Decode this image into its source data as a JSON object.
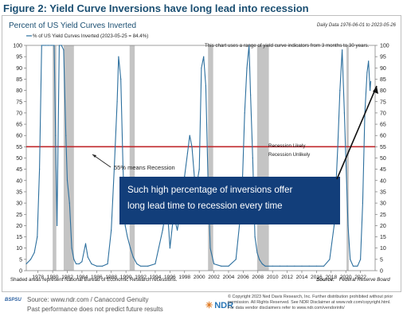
{
  "figure_title": "Figure 2: Yield Curve Inversions have long lead into recession",
  "chart_data": {
    "type": "line",
    "title": "Percent of US Yield Curves Inverted",
    "date_range_label": "Daily Data 1976-06-01 to 2023-05-26",
    "legend_label": "% of US Yield Curves Inverted (2023-05-25 = 84.4%)",
    "note_top": "This chart uses a range of yield curve indicators from 3 months to 30 years.",
    "xlim": [
      1976.4,
      2024.0
    ],
    "ylim": [
      0,
      100
    ],
    "y_ticks": [
      0,
      5,
      10,
      15,
      20,
      25,
      30,
      35,
      40,
      45,
      50,
      55,
      60,
      65,
      70,
      75,
      80,
      85,
      90,
      95,
      100
    ],
    "x_ticks": [
      "1978",
      "1980",
      "1982",
      "1984",
      "1986",
      "1988",
      "1990",
      "1992",
      "1994",
      "1996",
      "1998",
      "2000",
      "2002",
      "2004",
      "2006",
      "2008",
      "2010",
      "2012",
      "2014",
      "2016",
      "2018",
      "2020",
      "2022"
    ],
    "x_tick_values": [
      1978,
      1980,
      1982,
      1984,
      1986,
      1988,
      1990,
      1992,
      1994,
      1996,
      1998,
      2000,
      2002,
      2004,
      2006,
      2008,
      2010,
      2012,
      2014,
      2016,
      2018,
      2020,
      2022
    ],
    "recessions": [
      [
        1980.0,
        1980.5
      ],
      [
        1981.5,
        1982.9
      ],
      [
        1990.5,
        1991.2
      ],
      [
        2001.2,
        2001.9
      ],
      [
        2007.9,
        2009.5
      ],
      [
        2020.1,
        2020.4
      ]
    ],
    "threshold": 55,
    "threshold_label_above": "Recession Likely",
    "threshold_label_below": "Recession Unlikely",
    "threshold_note": "55% means Recession",
    "series": [
      {
        "x": [
          1976.4,
          1977.0,
          1977.5,
          1977.9,
          1978.2,
          1978.5,
          1978.7,
          1979.0,
          1979.4,
          1979.8,
          1980.2,
          1980.4,
          1980.6,
          1980.9,
          1981.2,
          1981.5,
          1981.8,
          1982.0,
          1982.3,
          1982.6,
          1982.9,
          1983.2,
          1983.6,
          1984.0,
          1984.5,
          1984.8,
          1985.3,
          1986.0,
          1986.8,
          1987.5,
          1988.0,
          1988.4,
          1988.8,
          1989.0,
          1989.3,
          1989.6,
          1989.9,
          1990.2,
          1990.6,
          1991.0,
          1991.5,
          1992.0,
          1993.0,
          1994.0,
          1995.0,
          1995.6,
          1996.0,
          1996.5,
          1997.0,
          1997.6,
          1998.0,
          1998.4,
          1998.7,
          1999.0,
          1999.5,
          2000.0,
          2000.3,
          2000.6,
          2000.9,
          2001.2,
          2001.5,
          2002.0,
          2003.0,
          2004.0,
          2005.0,
          2005.8,
          2006.2,
          2006.5,
          2006.8,
          2007.0,
          2007.3,
          2007.6,
          2007.9,
          2008.2,
          2008.6,
          2009.0,
          2010.0,
          2011.0,
          2012.0,
          2013.0,
          2014.0,
          2015.0,
          2016.0,
          2017.0,
          2017.8,
          2018.4,
          2018.9,
          2019.2,
          2019.5,
          2019.8,
          2020.0,
          2020.3,
          2020.6,
          2021.0,
          2021.6,
          2022.0,
          2022.3,
          2022.6,
          2022.9,
          2023.1,
          2023.3,
          2023.4
        ],
        "y": [
          3,
          5,
          8,
          15,
          45,
          100,
          100,
          100,
          100,
          100,
          100,
          60,
          20,
          100,
          100,
          98,
          60,
          40,
          30,
          10,
          5,
          3,
          3,
          4,
          12,
          6,
          3,
          2,
          2,
          3,
          18,
          45,
          75,
          95,
          85,
          45,
          20,
          15,
          10,
          6,
          3,
          2,
          2,
          3,
          18,
          30,
          10,
          25,
          18,
          30,
          42,
          52,
          60,
          55,
          35,
          45,
          90,
          95,
          82,
          40,
          10,
          3,
          2,
          2,
          5,
          30,
          70,
          90,
          100,
          78,
          50,
          15,
          8,
          5,
          3,
          2,
          2,
          2,
          2,
          2,
          2,
          2,
          2,
          2,
          5,
          20,
          55,
          80,
          98,
          70,
          50,
          20,
          5,
          2,
          2,
          5,
          30,
          70,
          88,
          93,
          80,
          84
        ]
      }
    ],
    "annotation_box": "Such high percentage of inversions offer long lead time to recession every time",
    "shaded_note": "Shaded areas represent National Bureau of Economic Research recessions.",
    "source_note": "Source:",
    "source_name": "Federal Reserve Board",
    "colors": {
      "line": "#2c6f9e",
      "threshold": "#c0282d",
      "recession": "#c4c4c4",
      "box_bg": "#123e7a",
      "box_text": "#ffffff",
      "title": "#1b4f72"
    }
  },
  "footer": {
    "badge": "BSPSU",
    "source_line": "Source: www.ndr.com / Canaccord Genuity",
    "past_line": "Past performance does not predict future results",
    "logo_text": "NDR",
    "copyright": "© Copyright 2023 Ned Davis Research, Inc. Further distribution prohibited without prior permission. All Rights Reserved. See NDR Disclaimer at www.ndr.com/copyright.html. For data vendor disclaimers refer to www.ndr.com/vendorinfo/"
  }
}
